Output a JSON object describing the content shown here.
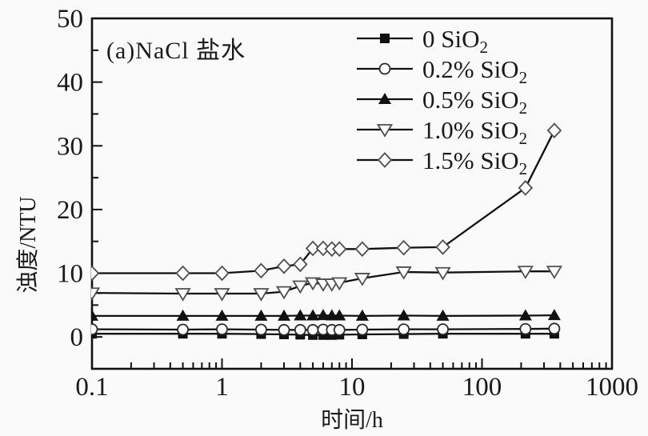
{
  "figure": {
    "annotation": "(a)NaCl 盐水",
    "x_axis_label": "时间/h",
    "y_axis_label": "浊度/NTU"
  },
  "chart_data": {
    "type": "line",
    "title": "(a)NaCl 盐水",
    "xlabel": "时间/h",
    "ylabel": "浊度/NTU",
    "x_scale": "log",
    "xlim": [
      0.1,
      1000
    ],
    "ylim": [
      -5,
      50
    ],
    "x_ticks": [
      0.1,
      1,
      10,
      100,
      1000
    ],
    "x_tick_labels": [
      "0.1",
      "1",
      "10",
      "100",
      "1000"
    ],
    "y_ticks": [
      0,
      10,
      20,
      30,
      40,
      50
    ],
    "y_tick_labels": [
      "0",
      "10",
      "20",
      "30",
      "40",
      "50"
    ],
    "y_minor_ticks": [
      5,
      15,
      25,
      35,
      45
    ],
    "grid": false,
    "legend_position": "inside-top-center",
    "x": [
      0.1,
      0.5,
      1,
      2,
      3,
      4,
      5,
      6,
      7,
      8,
      12,
      25,
      50,
      216,
      360
    ],
    "series": [
      {
        "name": "0 SiO2",
        "marker": "filled-square",
        "values": [
          0.5,
          0.5,
          0.5,
          0.45,
          0.4,
          0.35,
          0.3,
          0.3,
          0.3,
          0.35,
          0.4,
          0.45,
          0.5,
          0.5,
          0.5
        ]
      },
      {
        "name": "0.2% SiO2",
        "marker": "open-circle",
        "values": [
          1.2,
          1.15,
          1.2,
          1.15,
          1.1,
          1.1,
          1.1,
          1.15,
          1.1,
          1.1,
          1.15,
          1.2,
          1.2,
          1.25,
          1.3
        ]
      },
      {
        "name": "0.5% SiO2",
        "marker": "filled-triangle-up",
        "values": [
          3.3,
          3.3,
          3.3,
          3.3,
          3.3,
          3.35,
          3.35,
          3.4,
          3.35,
          3.35,
          3.3,
          3.35,
          3.3,
          3.35,
          3.4
        ]
      },
      {
        "name": "1.0% SiO2",
        "marker": "open-triangle-down",
        "values": [
          6.9,
          6.8,
          6.8,
          6.8,
          7.1,
          8.0,
          8.5,
          8.3,
          8.3,
          8.5,
          9.2,
          10.2,
          10.1,
          10.3,
          10.3
        ]
      },
      {
        "name": "1.5% SiO2",
        "marker": "open-diamond",
        "values": [
          10,
          10,
          10,
          10.4,
          11.1,
          11.4,
          13.9,
          13.9,
          13.8,
          13.8,
          13.8,
          14.0,
          14.1,
          23.4,
          32.4
        ]
      }
    ],
    "colors": {
      "line": "#111111",
      "text": "#1a1a1a",
      "open_marker_stroke": "#4f4f4f",
      "background": "#fafafa"
    }
  }
}
